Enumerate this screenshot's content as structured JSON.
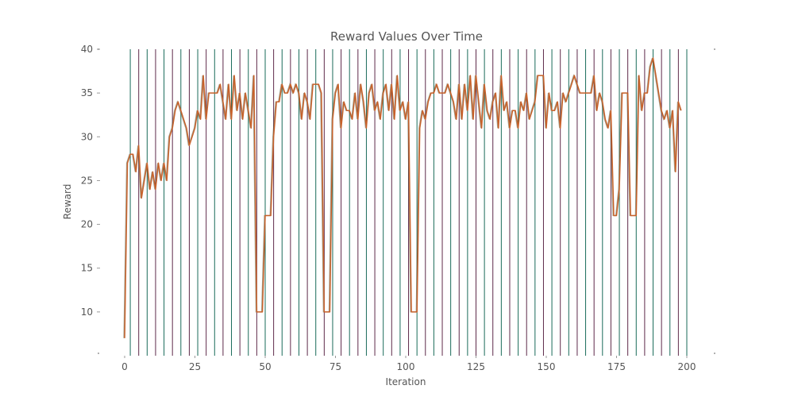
{
  "chart_data": {
    "type": "line",
    "title": "Reward Values Over Time",
    "xlabel": "Iteration",
    "ylabel": "Reward",
    "xlim": [
      0,
      200
    ],
    "ylim": [
      5,
      40
    ],
    "x_ticks": [
      0,
      25,
      50,
      75,
      100,
      125,
      150,
      175,
      200
    ],
    "y_ticks": [
      10,
      15,
      20,
      25,
      30,
      35,
      40
    ],
    "grid": false,
    "legend": "none",
    "vertical_lines": {
      "x": [
        2,
        5,
        8,
        11,
        14,
        17,
        20,
        23,
        26,
        29,
        32,
        35,
        38,
        41,
        44,
        47,
        50,
        53,
        56,
        59,
        62,
        65,
        68,
        71,
        74,
        77,
        80,
        83,
        86,
        89,
        92,
        95,
        98,
        101,
        104,
        107,
        110,
        113,
        116,
        119,
        122,
        125,
        128,
        131,
        134,
        137,
        140,
        143,
        146,
        149,
        152,
        155,
        158,
        161,
        164,
        167,
        170,
        173,
        176,
        179,
        182,
        185,
        188,
        191,
        194,
        197,
        200
      ],
      "colors": [
        "#1a6b5a",
        "#5e2a4a"
      ]
    },
    "series": [
      {
        "color": "#c8612a",
        "points": [
          [
            0,
            7
          ],
          [
            1,
            27
          ],
          [
            2,
            28
          ],
          [
            3,
            28
          ],
          [
            4,
            26
          ],
          [
            5,
            29
          ],
          [
            6,
            23
          ],
          [
            7,
            25
          ],
          [
            8,
            27
          ],
          [
            9,
            24
          ],
          [
            10,
            26
          ],
          [
            11,
            24
          ],
          [
            12,
            27
          ],
          [
            13,
            25
          ],
          [
            14,
            27
          ],
          [
            15,
            25
          ],
          [
            16,
            30
          ],
          [
            17,
            31
          ],
          [
            18,
            33
          ],
          [
            19,
            34
          ],
          [
            20,
            33
          ],
          [
            21,
            32
          ],
          [
            22,
            31
          ],
          [
            23,
            29
          ],
          [
            24,
            30
          ],
          [
            25,
            31
          ],
          [
            26,
            33
          ],
          [
            27,
            32
          ],
          [
            28,
            37
          ],
          [
            29,
            32
          ],
          [
            30,
            35
          ],
          [
            31,
            35
          ],
          [
            32,
            35
          ],
          [
            33,
            35
          ],
          [
            34,
            36
          ],
          [
            35,
            34
          ],
          [
            36,
            32
          ],
          [
            37,
            36
          ],
          [
            38,
            32
          ],
          [
            39,
            37
          ],
          [
            40,
            33
          ],
          [
            41,
            35
          ],
          [
            42,
            32
          ],
          [
            43,
            35
          ],
          [
            44,
            33
          ],
          [
            45,
            31
          ],
          [
            46,
            37
          ],
          [
            47,
            10
          ],
          [
            48,
            10
          ],
          [
            49,
            10
          ],
          [
            50,
            21
          ],
          [
            51,
            21
          ],
          [
            52,
            21
          ],
          [
            53,
            30
          ],
          [
            54,
            34
          ],
          [
            55,
            34
          ],
          [
            56,
            36
          ],
          [
            57,
            35
          ],
          [
            58,
            35
          ],
          [
            59,
            36
          ],
          [
            60,
            35
          ],
          [
            61,
            36
          ],
          [
            62,
            35
          ],
          [
            63,
            32
          ],
          [
            64,
            35
          ],
          [
            65,
            34
          ],
          [
            66,
            32
          ],
          [
            67,
            36
          ],
          [
            68,
            36
          ],
          [
            69,
            36
          ],
          [
            70,
            35
          ],
          [
            71,
            10
          ],
          [
            72,
            10
          ],
          [
            73,
            10
          ],
          [
            74,
            32
          ],
          [
            75,
            35
          ],
          [
            76,
            36
          ],
          [
            77,
            31
          ],
          [
            78,
            34
          ],
          [
            79,
            33
          ],
          [
            80,
            33
          ],
          [
            81,
            32
          ],
          [
            82,
            35
          ],
          [
            83,
            32
          ],
          [
            84,
            36
          ],
          [
            85,
            34
          ],
          [
            86,
            31
          ],
          [
            87,
            35
          ],
          [
            88,
            36
          ],
          [
            89,
            33
          ],
          [
            90,
            34
          ],
          [
            91,
            32
          ],
          [
            92,
            35
          ],
          [
            93,
            36
          ],
          [
            94,
            33
          ],
          [
            95,
            36
          ],
          [
            96,
            32
          ],
          [
            97,
            37
          ],
          [
            98,
            33
          ],
          [
            99,
            34
          ],
          [
            100,
            32
          ],
          [
            101,
            34
          ],
          [
            102,
            10
          ],
          [
            103,
            10
          ],
          [
            104,
            10
          ],
          [
            105,
            31
          ],
          [
            106,
            33
          ],
          [
            107,
            32
          ],
          [
            108,
            34
          ],
          [
            109,
            35
          ],
          [
            110,
            35
          ],
          [
            111,
            36
          ],
          [
            112,
            35
          ],
          [
            113,
            35
          ],
          [
            114,
            35
          ],
          [
            115,
            36
          ],
          [
            116,
            35
          ],
          [
            117,
            34
          ],
          [
            118,
            32
          ],
          [
            119,
            36
          ],
          [
            120,
            32
          ],
          [
            121,
            36
          ],
          [
            122,
            33
          ],
          [
            123,
            37
          ],
          [
            124,
            32
          ],
          [
            125,
            37
          ],
          [
            126,
            34
          ],
          [
            127,
            31
          ],
          [
            128,
            36
          ],
          [
            129,
            33
          ],
          [
            130,
            32
          ],
          [
            131,
            34
          ],
          [
            132,
            35
          ],
          [
            133,
            31
          ],
          [
            134,
            37
          ],
          [
            135,
            33
          ],
          [
            136,
            34
          ],
          [
            137,
            31
          ],
          [
            138,
            33
          ],
          [
            139,
            33
          ],
          [
            140,
            31
          ],
          [
            141,
            34
          ],
          [
            142,
            33
          ],
          [
            143,
            35
          ],
          [
            144,
            32
          ],
          [
            145,
            33
          ],
          [
            146,
            34
          ],
          [
            147,
            37
          ],
          [
            148,
            37
          ],
          [
            149,
            37
          ],
          [
            150,
            31
          ],
          [
            151,
            35
          ],
          [
            152,
            33
          ],
          [
            153,
            33
          ],
          [
            154,
            34
          ],
          [
            155,
            31
          ],
          [
            156,
            35
          ],
          [
            157,
            34
          ],
          [
            158,
            35
          ],
          [
            159,
            36
          ],
          [
            160,
            37
          ],
          [
            161,
            36
          ],
          [
            162,
            35
          ],
          [
            163,
            35
          ],
          [
            164,
            35
          ],
          [
            165,
            35
          ],
          [
            166,
            35
          ],
          [
            167,
            37
          ],
          [
            168,
            33
          ],
          [
            169,
            35
          ],
          [
            170,
            34
          ],
          [
            171,
            32
          ],
          [
            172,
            31
          ],
          [
            173,
            33
          ],
          [
            174,
            21
          ],
          [
            175,
            21
          ],
          [
            176,
            24
          ],
          [
            177,
            35
          ],
          [
            178,
            35
          ],
          [
            179,
            35
          ],
          [
            180,
            21
          ],
          [
            181,
            21
          ],
          [
            182,
            21
          ],
          [
            183,
            37
          ],
          [
            184,
            33
          ],
          [
            185,
            35
          ],
          [
            186,
            35
          ],
          [
            187,
            38
          ],
          [
            188,
            39
          ],
          [
            189,
            37
          ],
          [
            190,
            35
          ],
          [
            191,
            33
          ],
          [
            192,
            32
          ],
          [
            193,
            33
          ],
          [
            194,
            31
          ],
          [
            195,
            33
          ],
          [
            196,
            26
          ],
          [
            197,
            34
          ],
          [
            198,
            33
          ]
        ]
      }
    ]
  }
}
